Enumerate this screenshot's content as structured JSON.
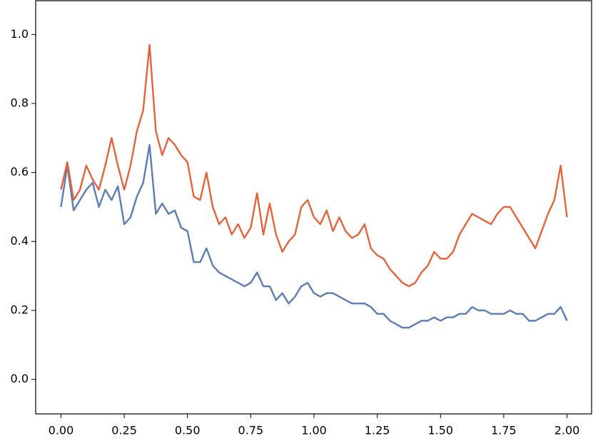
{
  "chart_data": {
    "type": "line",
    "x": [
      0,
      0.025,
      0.05,
      0.075,
      0.1,
      0.125,
      0.15,
      0.175,
      0.2,
      0.225,
      0.25,
      0.275,
      0.3,
      0.325,
      0.35,
      0.375,
      0.4,
      0.425,
      0.45,
      0.475,
      0.5,
      0.525,
      0.55,
      0.575,
      0.6,
      0.625,
      0.65,
      0.675,
      0.7,
      0.725,
      0.75,
      0.775,
      0.8,
      0.825,
      0.85,
      0.875,
      0.9,
      0.925,
      0.95,
      0.975,
      1.0,
      1.025,
      1.05,
      1.075,
      1.1,
      1.125,
      1.15,
      1.175,
      1.2,
      1.225,
      1.25,
      1.275,
      1.3,
      1.325,
      1.35,
      1.375,
      1.4,
      1.425,
      1.45,
      1.475,
      1.5,
      1.525,
      1.55,
      1.575,
      1.6,
      1.625,
      1.65,
      1.675,
      1.7,
      1.725,
      1.75,
      1.775,
      1.8,
      1.825,
      1.85,
      1.875,
      1.9,
      1.925,
      1.95,
      1.975,
      2.0
    ],
    "series": [
      {
        "color": "#5a7db5",
        "values": [
          0.5,
          0.62,
          0.49,
          0.52,
          0.55,
          0.57,
          0.5,
          0.55,
          0.52,
          0.56,
          0.45,
          0.47,
          0.53,
          0.57,
          0.68,
          0.48,
          0.51,
          0.48,
          0.49,
          0.44,
          0.43,
          0.34,
          0.34,
          0.38,
          0.33,
          0.31,
          0.3,
          0.29,
          0.28,
          0.27,
          0.28,
          0.31,
          0.27,
          0.27,
          0.23,
          0.25,
          0.22,
          0.24,
          0.27,
          0.28,
          0.25,
          0.24,
          0.25,
          0.25,
          0.24,
          0.23,
          0.22,
          0.22,
          0.22,
          0.21,
          0.19,
          0.19,
          0.17,
          0.16,
          0.15,
          0.15,
          0.16,
          0.17,
          0.17,
          0.18,
          0.17,
          0.18,
          0.18,
          0.19,
          0.19,
          0.21,
          0.2,
          0.2,
          0.19,
          0.19,
          0.19,
          0.2,
          0.19,
          0.19,
          0.17,
          0.17,
          0.18,
          0.19,
          0.19,
          0.21,
          0.17
        ]
      },
      {
        "color": "#e5623a",
        "values": [
          0.55,
          0.63,
          0.52,
          0.55,
          0.62,
          0.58,
          0.55,
          0.62,
          0.7,
          0.62,
          0.55,
          0.62,
          0.72,
          0.78,
          0.97,
          0.72,
          0.65,
          0.7,
          0.68,
          0.65,
          0.63,
          0.53,
          0.52,
          0.6,
          0.5,
          0.45,
          0.47,
          0.42,
          0.45,
          0.41,
          0.44,
          0.54,
          0.42,
          0.51,
          0.42,
          0.37,
          0.4,
          0.42,
          0.5,
          0.52,
          0.47,
          0.45,
          0.49,
          0.43,
          0.47,
          0.43,
          0.41,
          0.42,
          0.45,
          0.38,
          0.36,
          0.35,
          0.32,
          0.3,
          0.28,
          0.27,
          0.28,
          0.31,
          0.33,
          0.37,
          0.35,
          0.35,
          0.37,
          0.42,
          0.45,
          0.48,
          0.47,
          0.46,
          0.45,
          0.48,
          0.5,
          0.5,
          0.47,
          0.44,
          0.41,
          0.38,
          0.43,
          0.48,
          0.52,
          0.62,
          0.47
        ]
      }
    ],
    "xlim": [
      -0.1,
      2.1
    ],
    "ylim": [
      -0.1,
      1.1
    ],
    "xticks": [
      {
        "value": 0,
        "label": "0.00"
      },
      0.25,
      {
        "value": 0.5,
        "label": "0.50"
      },
      0.75,
      {
        "value": 1,
        "label": "1.00"
      },
      1.25,
      {
        "value": 1.5,
        "label": "1.50"
      },
      1.75,
      {
        "value": 2,
        "label": "2.00"
      }
    ],
    "yticks": [
      {
        "value": 0,
        "label": "0.0"
      },
      0.2,
      0.4,
      0.6,
      0.8,
      {
        "value": 1,
        "label": "1.0"
      }
    ]
  }
}
